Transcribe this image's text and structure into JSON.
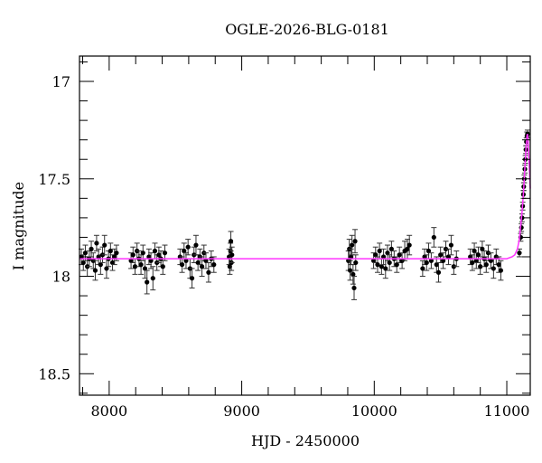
{
  "chart_data": {
    "type": "scatter",
    "title": "OGLE-2026-BLG-0181",
    "xlabel": "HJD - 2450000",
    "ylabel": "I magnitude",
    "xlim": [
      7776,
      11177
    ],
    "ylim": [
      18.61,
      16.87
    ],
    "y_inverted": true,
    "grid": false,
    "xticks": [
      8000,
      9000,
      10000,
      11000
    ],
    "yticks": [
      17,
      17.5,
      18,
      18.5
    ],
    "xtick_labels": [
      "8000",
      "9000",
      "10000",
      "11000"
    ],
    "ytick_labels": [
      "17",
      "17.5",
      "18",
      "18.5"
    ],
    "colors": {
      "points": "#000000",
      "model": "#ff33ff"
    },
    "points": [
      [
        7790,
        17.9,
        0.04
      ],
      [
        7805,
        17.93,
        0.04
      ],
      [
        7820,
        17.88,
        0.04
      ],
      [
        7835,
        17.95,
        0.05
      ],
      [
        7850,
        17.91,
        0.04
      ],
      [
        7865,
        17.86,
        0.04
      ],
      [
        7880,
        17.92,
        0.04
      ],
      [
        7895,
        17.97,
        0.05
      ],
      [
        7905,
        17.83,
        0.04
      ],
      [
        7920,
        17.9,
        0.04
      ],
      [
        7935,
        17.94,
        0.05
      ],
      [
        7950,
        17.89,
        0.04
      ],
      [
        7965,
        17.84,
        0.05
      ],
      [
        7980,
        17.96,
        0.05
      ],
      [
        7995,
        17.91,
        0.04
      ],
      [
        8010,
        17.87,
        0.04
      ],
      [
        8025,
        17.93,
        0.04
      ],
      [
        8040,
        17.9,
        0.04
      ],
      [
        8055,
        17.88,
        0.04
      ],
      [
        8165,
        17.92,
        0.04
      ],
      [
        8180,
        17.89,
        0.04
      ],
      [
        8195,
        17.95,
        0.04
      ],
      [
        8210,
        17.87,
        0.04
      ],
      [
        8225,
        17.91,
        0.04
      ],
      [
        8240,
        17.94,
        0.05
      ],
      [
        8255,
        17.88,
        0.04
      ],
      [
        8270,
        17.96,
        0.05
      ],
      [
        8285,
        18.03,
        0.06
      ],
      [
        8300,
        17.9,
        0.04
      ],
      [
        8315,
        17.92,
        0.04
      ],
      [
        8330,
        18.01,
        0.06
      ],
      [
        8345,
        17.87,
        0.04
      ],
      [
        8360,
        17.93,
        0.04
      ],
      [
        8375,
        17.89,
        0.04
      ],
      [
        8390,
        17.91,
        0.04
      ],
      [
        8405,
        17.95,
        0.04
      ],
      [
        8420,
        17.88,
        0.04
      ],
      [
        8535,
        17.9,
        0.04
      ],
      [
        8550,
        17.94,
        0.04
      ],
      [
        8565,
        17.87,
        0.04
      ],
      [
        8580,
        17.92,
        0.04
      ],
      [
        8595,
        17.85,
        0.04
      ],
      [
        8610,
        17.96,
        0.05
      ],
      [
        8625,
        18.01,
        0.05
      ],
      [
        8640,
        17.89,
        0.04
      ],
      [
        8655,
        17.84,
        0.05
      ],
      [
        8670,
        17.93,
        0.04
      ],
      [
        8685,
        17.9,
        0.04
      ],
      [
        8700,
        17.95,
        0.05
      ],
      [
        8715,
        17.88,
        0.04
      ],
      [
        8730,
        17.92,
        0.04
      ],
      [
        8750,
        17.98,
        0.05
      ],
      [
        8770,
        17.91,
        0.04
      ],
      [
        8790,
        17.94,
        0.04
      ],
      [
        8905,
        17.9,
        0.04
      ],
      [
        8910,
        17.95,
        0.04
      ],
      [
        8915,
        17.87,
        0.04
      ],
      [
        8918,
        17.82,
        0.05
      ],
      [
        8922,
        17.93,
        0.04
      ],
      [
        8926,
        17.89,
        0.04
      ],
      [
        9805,
        17.92,
        0.05
      ],
      [
        9812,
        17.86,
        0.05
      ],
      [
        9818,
        17.97,
        0.05
      ],
      [
        9825,
        17.9,
        0.04
      ],
      [
        9832,
        17.84,
        0.05
      ],
      [
        9840,
        17.99,
        0.05
      ],
      [
        9848,
        18.06,
        0.06
      ],
      [
        9855,
        17.82,
        0.06
      ],
      [
        9860,
        17.93,
        0.04
      ],
      [
        9995,
        17.92,
        0.04
      ],
      [
        10010,
        17.89,
        0.04
      ],
      [
        10025,
        17.94,
        0.04
      ],
      [
        10040,
        17.87,
        0.04
      ],
      [
        10055,
        17.95,
        0.04
      ],
      [
        10070,
        17.9,
        0.04
      ],
      [
        10085,
        17.96,
        0.05
      ],
      [
        10100,
        17.88,
        0.04
      ],
      [
        10115,
        17.93,
        0.04
      ],
      [
        10130,
        17.86,
        0.04
      ],
      [
        10150,
        17.91,
        0.04
      ],
      [
        10170,
        17.94,
        0.04
      ],
      [
        10190,
        17.89,
        0.04
      ],
      [
        10210,
        17.92,
        0.04
      ],
      [
        10230,
        17.87,
        0.05
      ],
      [
        10250,
        17.86,
        0.05
      ],
      [
        10265,
        17.84,
        0.05
      ],
      [
        10365,
        17.96,
        0.04
      ],
      [
        10380,
        17.9,
        0.04
      ],
      [
        10395,
        17.93,
        0.04
      ],
      [
        10410,
        17.87,
        0.04
      ],
      [
        10430,
        17.92,
        0.04
      ],
      [
        10450,
        17.8,
        0.05
      ],
      [
        10470,
        17.94,
        0.04
      ],
      [
        10485,
        17.98,
        0.05
      ],
      [
        10500,
        17.89,
        0.04
      ],
      [
        10520,
        17.92,
        0.04
      ],
      [
        10540,
        17.86,
        0.04
      ],
      [
        10560,
        17.9,
        0.04
      ],
      [
        10580,
        17.84,
        0.05
      ],
      [
        10600,
        17.95,
        0.04
      ],
      [
        10620,
        17.91,
        0.04
      ],
      [
        10725,
        17.9,
        0.04
      ],
      [
        10740,
        17.93,
        0.04
      ],
      [
        10755,
        17.87,
        0.04
      ],
      [
        10770,
        17.92,
        0.04
      ],
      [
        10785,
        17.89,
        0.04
      ],
      [
        10800,
        17.95,
        0.04
      ],
      [
        10815,
        17.86,
        0.04
      ],
      [
        10830,
        17.91,
        0.04
      ],
      [
        10845,
        17.94,
        0.04
      ],
      [
        10860,
        17.88,
        0.04
      ],
      [
        10880,
        17.92,
        0.04
      ],
      [
        10900,
        17.96,
        0.05
      ],
      [
        10920,
        17.9,
        0.04
      ],
      [
        10940,
        17.94,
        0.04
      ],
      [
        10955,
        17.97,
        0.05
      ],
      [
        11095,
        17.88,
        0.02
      ],
      [
        11105,
        17.8,
        0.02
      ],
      [
        11110,
        17.75,
        0.02
      ],
      [
        11115,
        17.7,
        0.02
      ],
      [
        11120,
        17.64,
        0.02
      ],
      [
        11125,
        17.58,
        0.02
      ],
      [
        11128,
        17.54,
        0.02
      ],
      [
        11132,
        17.5,
        0.02
      ],
      [
        11136,
        17.45,
        0.02
      ],
      [
        11140,
        17.4,
        0.02
      ],
      [
        11144,
        17.35,
        0.02
      ],
      [
        11148,
        17.31,
        0.02
      ],
      [
        11152,
        17.28,
        0.02
      ],
      [
        11156,
        17.27,
        0.02
      ]
    ],
    "model": [
      [
        7776,
        17.91
      ],
      [
        11000,
        17.91
      ],
      [
        11040,
        17.9
      ],
      [
        11060,
        17.89
      ],
      [
        11080,
        17.86
      ],
      [
        11095,
        17.81
      ],
      [
        11105,
        17.74
      ],
      [
        11115,
        17.67
      ],
      [
        11125,
        17.58
      ],
      [
        11135,
        17.46
      ],
      [
        11145,
        17.34
      ],
      [
        11152,
        17.28
      ],
      [
        11156,
        17.27
      ],
      [
        11160,
        17.3
      ],
      [
        11166,
        17.38
      ],
      [
        11172,
        17.47
      ],
      [
        11177,
        17.55
      ]
    ]
  }
}
